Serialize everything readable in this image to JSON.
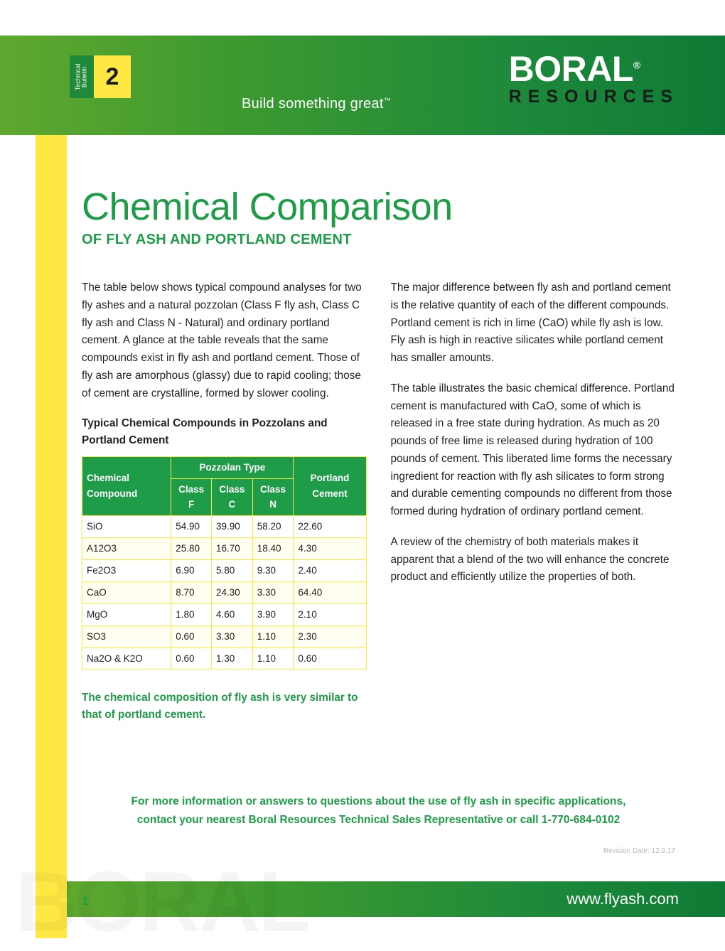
{
  "header": {
    "badge_left_line1": "Technical",
    "badge_left_line2": "Bulletin",
    "badge_number": "2",
    "tagline": "Build something great",
    "tagline_tm": "™",
    "logo_top": "BORAL",
    "logo_reg": "®",
    "logo_bottom": "RESOURCES"
  },
  "title": {
    "main": "Chemical Comparison",
    "sub": "OF FLY ASH AND PORTLAND CEMENT"
  },
  "body": {
    "left_p1": "The table below shows typical compound analyses for two fly ashes and a natural pozzolan (Class F fly ash, Class C fly ash and Class N - Natural) and ordinary portland cement. A glance at the table reveals that the same compounds exist in fly ash and portland cement. Those of fly ash are amorphous (glassy) due to rapid cooling; those of cement are crystalline, formed by slower cooling.",
    "table_title": "Typical Chemical Compounds in Pozzolans and Portland Cement",
    "right_p1": "The major difference between fly ash and portland cement is the relative quantity of each of the different compounds. Portland cement is rich in lime (CaO) while fly ash is low. Fly ash is high in reactive silicates while portland cement has smaller amounts.",
    "right_p2": "The table illustrates the basic chemical difference. Portland cement is manufactured with CaO, some of which is released in a free state during hydration. As much as 20 pounds of free lime is released during hydration of 100 pounds of cement. This liberated lime forms the necessary ingredient for reaction with fly ash silicates to form strong and durable cementing compounds no different from those formed during hydration of ordinary portland cement.",
    "right_p3": "A review of the chemistry of both materials makes it apparent that a blend of the two will enhance the concrete product and efficiently utilize the properties of both.",
    "highlight": "The chemical composition of fly ash is very similar to that of portland cement."
  },
  "table": {
    "head_compound": "Chemical Compound",
    "head_pozzolan": "Pozzolan Type",
    "head_portland": "Portland Cement",
    "head_classF": "Class F",
    "head_classC": "Class C",
    "head_classN": "Class N",
    "rows": [
      {
        "c": "SiO",
        "f": "54.90",
        "cc": "39.90",
        "n": "58.20",
        "p": "22.60"
      },
      {
        "c": "A12O3",
        "f": "25.80",
        "cc": "16.70",
        "n": "18.40",
        "p": "4.30"
      },
      {
        "c": "Fe2O3",
        "f": "6.90",
        "cc": "5.80",
        "n": "9.30",
        "p": "2.40"
      },
      {
        "c": "CaO",
        "f": "8.70",
        "cc": "24.30",
        "n": "3.30",
        "p": "64.40"
      },
      {
        "c": "MgO",
        "f": "1.80",
        "cc": "4.60",
        "n": "3.90",
        "p": "2.10"
      },
      {
        "c": "SO3",
        "f": "0.60",
        "cc": "3.30",
        "n": "1.10",
        "p": "2.30"
      },
      {
        "c": "Na2O & K2O",
        "f": "0.60",
        "cc": "1.30",
        "n": "1.10",
        "p": "0.60"
      }
    ],
    "header_bg": "#1e9c47",
    "header_fg": "#ffffff",
    "border_color": "#ffe843",
    "row_alt_bg": "#fffef0"
  },
  "cta": {
    "line1": "For more information or answers to questions about the use of fly ash in specific applications,",
    "line2": "contact your nearest Boral Resources Technical Sales Representative or call 1-770-684-0102"
  },
  "footer": {
    "revision": "Revision Date: 12.9.17",
    "page_num": "1",
    "url": "www.flyash.com",
    "watermark": "BORAL"
  },
  "colors": {
    "green_primary": "#1e9c47",
    "green_dark": "#0f7a35",
    "yellow": "#ffe843",
    "text": "#222222",
    "grey": "#b8b8b8"
  }
}
